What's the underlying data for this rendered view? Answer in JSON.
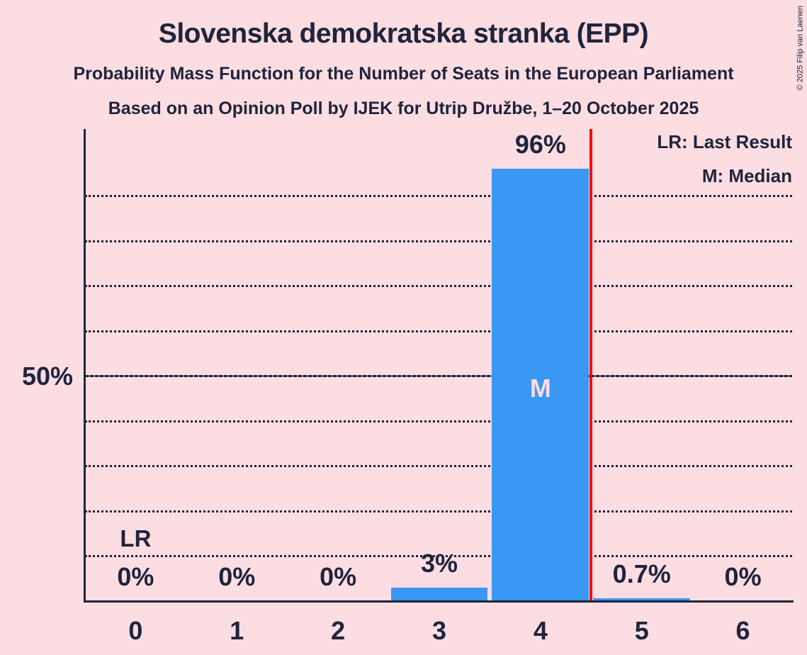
{
  "copyright": "© 2025 Filip van Laenen",
  "colors": {
    "background": "#FCDDE2",
    "bar": "#3B97F4",
    "text": "#20243C",
    "red_line": "#FF0000",
    "median_label": "#FCDDE2"
  },
  "chart_data": {
    "type": "bar",
    "title": "Slovenska demokratska stranka (EPP)",
    "subtitle": "Probability Mass Function for the Number of Seats in the European Parliament",
    "poll_details": "Based on an Opinion Poll by IJEK for Utrip Družbe, 1–20 October 2025",
    "xlabel": "",
    "ylabel": "",
    "categories": [
      "0",
      "1",
      "2",
      "3",
      "4",
      "5",
      "6"
    ],
    "values": [
      0,
      0,
      0,
      3,
      96,
      0.7,
      0
    ],
    "value_labels": [
      "0%",
      "0%",
      "0%",
      "3%",
      "96%",
      "0.7%",
      "0%"
    ],
    "ylim": [
      0,
      100
    ],
    "y_axis_tick": {
      "value": 50,
      "label": "50%"
    },
    "gridlines": [
      10,
      20,
      30,
      40,
      50,
      60,
      70,
      80,
      90
    ],
    "solid_gridline": 50,
    "grid": true,
    "legend_position": "top-right",
    "legend": [
      "LR: Last Result",
      "M: Median"
    ],
    "annotations": {
      "last_result": {
        "text": "LR",
        "column": 0
      },
      "median": {
        "text": "M",
        "column": 4
      }
    },
    "red_line_x": 4.5
  }
}
